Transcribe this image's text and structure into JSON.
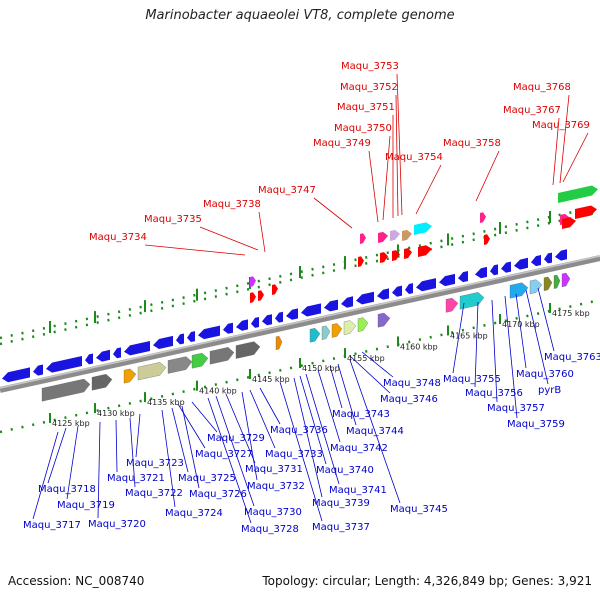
{
  "title": "Marinobacter aquaeolei VT8, complete genome",
  "accession": "Accession: NC_008740",
  "summary": "Topology: circular; Length: 4,326,849 bp; Genes: 3,921",
  "colors": {
    "forward_label": "#dd0000",
    "reverse_label": "#0000cc",
    "backbone": "#8c8c8c",
    "tick": "#1a8a1a"
  },
  "ticks": [
    "4125 kbp",
    "4130 kbp",
    "4135 kbp",
    "4140 kbp",
    "4145 kbp",
    "4150 kbp",
    "4155 kbp",
    "4160 kbp",
    "4165 kbp",
    "4170 kbp",
    "4175 kbp"
  ],
  "forward_genes": [
    "Maqu_3734",
    "Maqu_3735",
    "Maqu_3738",
    "Maqu_3747",
    "Maqu_3749",
    "Maqu_3750",
    "Maqu_3751",
    "Maqu_3752",
    "Maqu_3753",
    "Maqu_3754",
    "Maqu_3758",
    "Maqu_3767",
    "Maqu_3768",
    "Maqu_3769"
  ],
  "reverse_genes": [
    "Maqu_3717",
    "Maqu_3718",
    "Maqu_3719",
    "Maqu_3720",
    "Maqu_3721",
    "Maqu_3722",
    "Maqu_3723",
    "Maqu_3724",
    "Maqu_3725",
    "Maqu_3726",
    "Maqu_3727",
    "Maqu_3728",
    "Maqu_3729",
    "Maqu_3730",
    "Maqu_3731",
    "Maqu_3732",
    "Maqu_3733",
    "Maqu_3736",
    "Maqu_3737",
    "Maqu_3739",
    "Maqu_3740",
    "Maqu_3741",
    "Maqu_3742",
    "Maqu_3743",
    "Maqu_3744",
    "Maqu_3745",
    "Maqu_3746",
    "Maqu_3748",
    "Maqu_3755",
    "Maqu_3756",
    "Maqu_3757",
    "Maqu_3759",
    "Maqu_3760",
    "pyrB",
    "Maqu_3763"
  ]
}
